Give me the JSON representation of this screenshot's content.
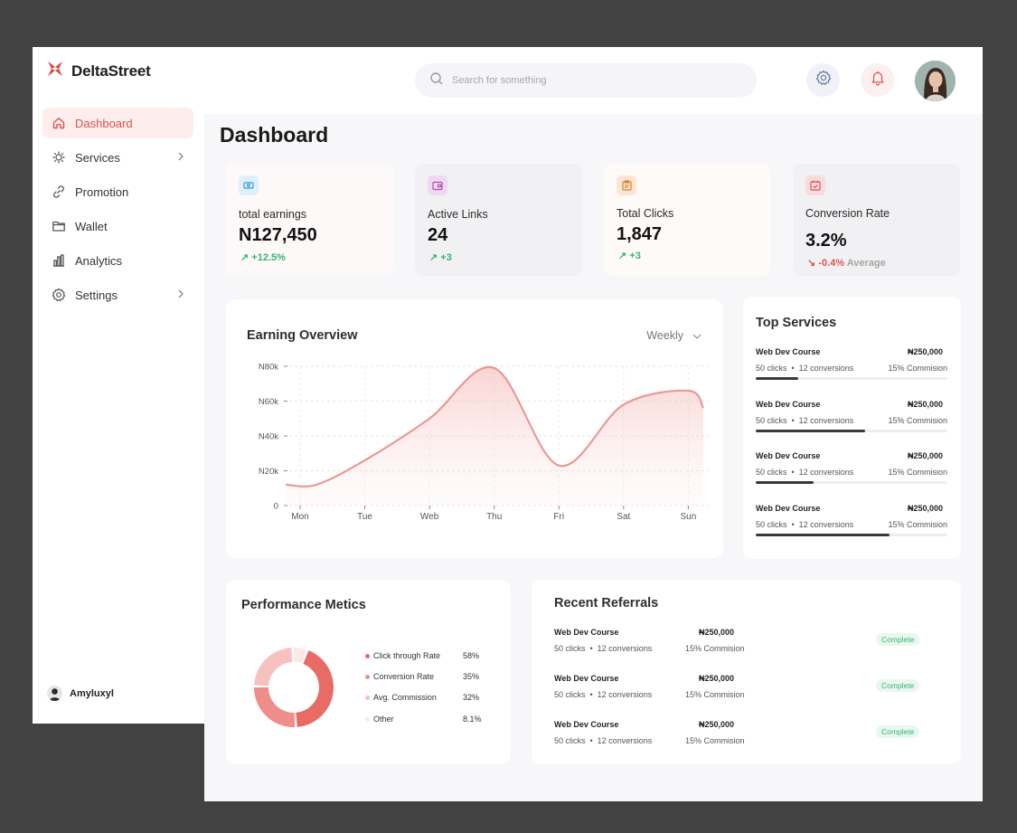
{
  "app": {
    "brand": "DeltaStreet",
    "accent": "#d9534f"
  },
  "sidebar": {
    "items": [
      {
        "label": "Dashboard",
        "icon": "home-icon",
        "active": true
      },
      {
        "label": "Services",
        "icon": "services-icon",
        "chevron": true
      },
      {
        "label": "Promotion",
        "icon": "link-icon"
      },
      {
        "label": "Wallet",
        "icon": "folder-icon"
      },
      {
        "label": "Analytics",
        "icon": "bar-chart-icon"
      },
      {
        "label": "Settings",
        "icon": "gear-icon",
        "chevron": true
      }
    ],
    "user": "Amyluxyl"
  },
  "header": {
    "search_placeholder": "Search for something"
  },
  "page_title": "Dashboard",
  "stats": [
    {
      "label": "total earnings",
      "value": "N127,450",
      "change": "+12.5%",
      "direction": "up",
      "icon": "money-icon",
      "bg": "#fdf9f8",
      "icon_bg": "#dff0fb",
      "icon_color": "#3a9bd9"
    },
    {
      "label": "Active Links",
      "value": "24",
      "change": "+3",
      "direction": "up",
      "icon": "wallet-icon",
      "bg": "#f1f1f3",
      "icon_bg": "#f0d9f0",
      "icon_color": "#b146b0"
    },
    {
      "label": "Total Clicks",
      "value": "1,847",
      "change": "+3",
      "direction": "up",
      "icon": "clipboard-icon",
      "bg": "#fdfaf7",
      "icon_bg": "#fbe6d4",
      "icon_color": "#d9812f"
    },
    {
      "label": "Conversion Rate",
      "value": "3.2%",
      "change": "-0.4%",
      "change_note": "Average",
      "direction": "down",
      "icon": "calendar-icon",
      "bg": "#f1f1f3",
      "icon_bg": "#f8dcdc",
      "icon_color": "#d9534f"
    }
  ],
  "earning_overview": {
    "title": "Earning Overview",
    "period": "Weekly",
    "chart_data": {
      "type": "area",
      "x": [
        "Mon",
        "Tue",
        "Web",
        "Thu",
        "Fri",
        "Sat",
        "Sun"
      ],
      "y_ticks": [
        "0",
        "N20k",
        "N40k",
        "N60k",
        "N80k"
      ],
      "ylim": [
        0,
        80000
      ],
      "series": [
        {
          "points": [
            [
              "Mon",
              12000
            ],
            [
              "Tue",
              26000
            ],
            [
              "Web",
              50000
            ],
            [
              "Thu",
              79000
            ],
            [
              "Fri",
              23000
            ],
            [
              "Sat",
              58000
            ],
            [
              "Sun",
              66000
            ]
          ]
        }
      ],
      "color": "#e99a96",
      "grid": true
    }
  },
  "top_services": {
    "title": "Top Services",
    "items": [
      {
        "name": "Web Dev Course",
        "amount": "₦250,000",
        "clicks": "50 clicks",
        "conversions": "12 conversions",
        "commission": "15% Commision",
        "progress": 0.22
      },
      {
        "name": "Web Dev Course",
        "amount": "₦250,000",
        "clicks": "50 clicks",
        "conversions": "12 conversions",
        "commission": "15% Commision",
        "progress": 0.57
      },
      {
        "name": "Web Dev Course",
        "amount": "₦250,000",
        "clicks": "50 clicks",
        "conversions": "12 conversions",
        "commission": "15% Commision",
        "progress": 0.3
      },
      {
        "name": "Web Dev Course",
        "amount": "₦250,000",
        "clicks": "50 clicks",
        "conversions": "12 conversions",
        "commission": "15% Commision",
        "progress": 0.7
      }
    ]
  },
  "performance": {
    "title": "Performance Metics",
    "chart_data": {
      "type": "pie",
      "donut": true,
      "slices": [
        {
          "label": "Click through Rate",
          "value": "58%",
          "color": "#e96b66"
        },
        {
          "label": "Conversion Rate",
          "value": "35%",
          "color": "#ee8d89"
        },
        {
          "label": "Avg. Commission",
          "value": "32%",
          "color": "#f6c2c0"
        },
        {
          "label": "Other",
          "value": "8.1%",
          "color": "#fbe8e7"
        }
      ]
    }
  },
  "referrals": {
    "title": "Recent Referrals",
    "rows": [
      {
        "name": "Web Dev Course",
        "amount": "₦250,000",
        "clicks": "50 clicks",
        "conversions": "12 conversions",
        "commission": "15% Commision",
        "status": "Complete"
      },
      {
        "name": "Web Dev Course",
        "amount": "₦250,000",
        "clicks": "50 clicks",
        "conversions": "12 conversions",
        "commission": "15% Commision",
        "status": "Complete"
      },
      {
        "name": "Web Dev Course",
        "amount": "₦250,000",
        "clicks": "50 clicks",
        "conversions": "12 conversions",
        "commission": "15% Commision",
        "status": "Complete"
      }
    ]
  }
}
